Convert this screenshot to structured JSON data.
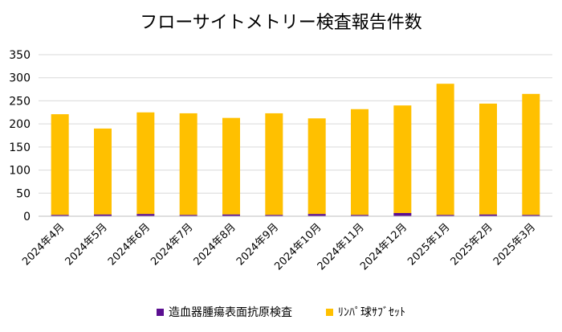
{
  "chart_data": {
    "type": "bar",
    "stacked": true,
    "title": "フローサイトメトリー検査報告件数",
    "xlabel": "",
    "ylabel": "",
    "categories": [
      "2024年4月",
      "2024年5月",
      "2024年6月",
      "2024年7月",
      "2024年8月",
      "2024年9月",
      "2024年10月",
      "2024年11月",
      "2024年12月",
      "2025年1月",
      "2025年2月",
      "2025年3月"
    ],
    "series": [
      {
        "name": "造血器腫瘍表面抗原検査",
        "color": "#5b0f91",
        "values": [
          3,
          4,
          5,
          3,
          4,
          3,
          5,
          3,
          7,
          3,
          4,
          3
        ]
      },
      {
        "name": "ﾘﾝﾊﾟ球ｻﾌﾞｾｯﾄ",
        "color": "#ffc000",
        "values": [
          218,
          186,
          220,
          220,
          209,
          220,
          207,
          229,
          233,
          284,
          240,
          262
        ]
      }
    ],
    "ylim": [
      0,
      350
    ],
    "yticks": [
      0,
      50,
      100,
      150,
      200,
      250,
      300,
      350
    ],
    "grid": true,
    "legend": "bottom"
  }
}
